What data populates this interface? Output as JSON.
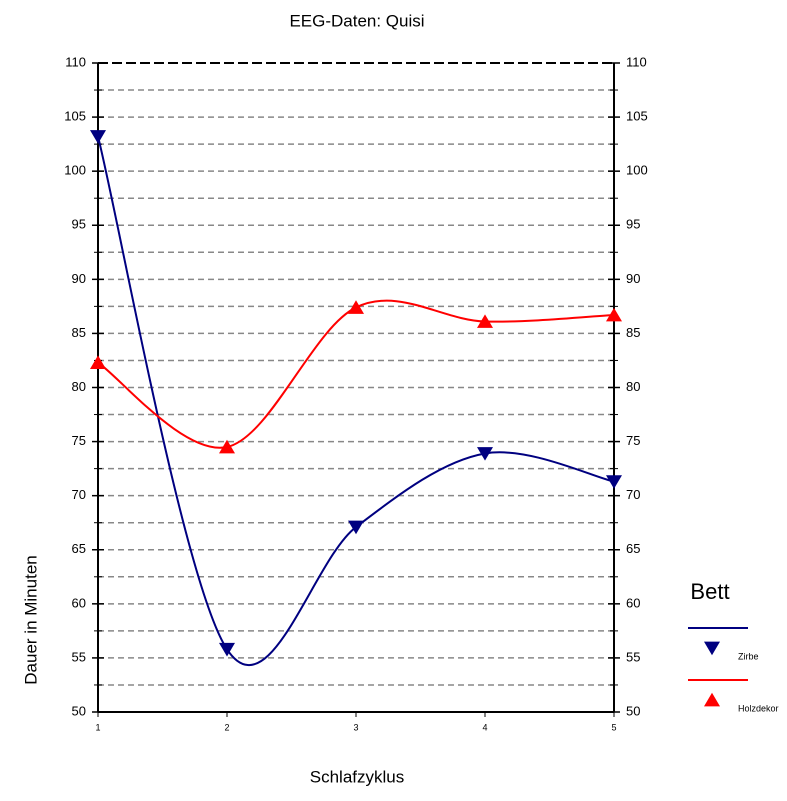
{
  "chart_data": {
    "type": "line",
    "title": "EEG-Daten: Quisi",
    "x_label": "Schlafzyklus",
    "y_label": "Dauer in Minuten",
    "x": [
      1,
      2,
      3,
      4,
      5
    ],
    "xlim": [
      1,
      5
    ],
    "xticks": [
      1,
      2,
      3,
      4,
      5
    ],
    "ylim": [
      50,
      110
    ],
    "yticks": [
      50,
      55,
      60,
      65,
      70,
      75,
      80,
      85,
      90,
      95,
      100,
      105,
      110
    ],
    "y2lim": [
      50,
      110
    ],
    "y2ticks": [
      50,
      55,
      60,
      65,
      70,
      75,
      80,
      85,
      90,
      95,
      100,
      105,
      110
    ],
    "grid": true,
    "smooth": true,
    "legend_title": "Bett",
    "legend_position": "right",
    "series": [
      {
        "name": "Zirbe",
        "color": "#000080",
        "marker": "triangle-down",
        "values": [
          103.2,
          55.8,
          67.1,
          73.9,
          71.3
        ]
      },
      {
        "name": "Holzdekor",
        "color": "#ff0000",
        "marker": "triangle-up",
        "values": [
          82.3,
          74.5,
          87.4,
          86.1,
          86.7
        ]
      }
    ]
  }
}
